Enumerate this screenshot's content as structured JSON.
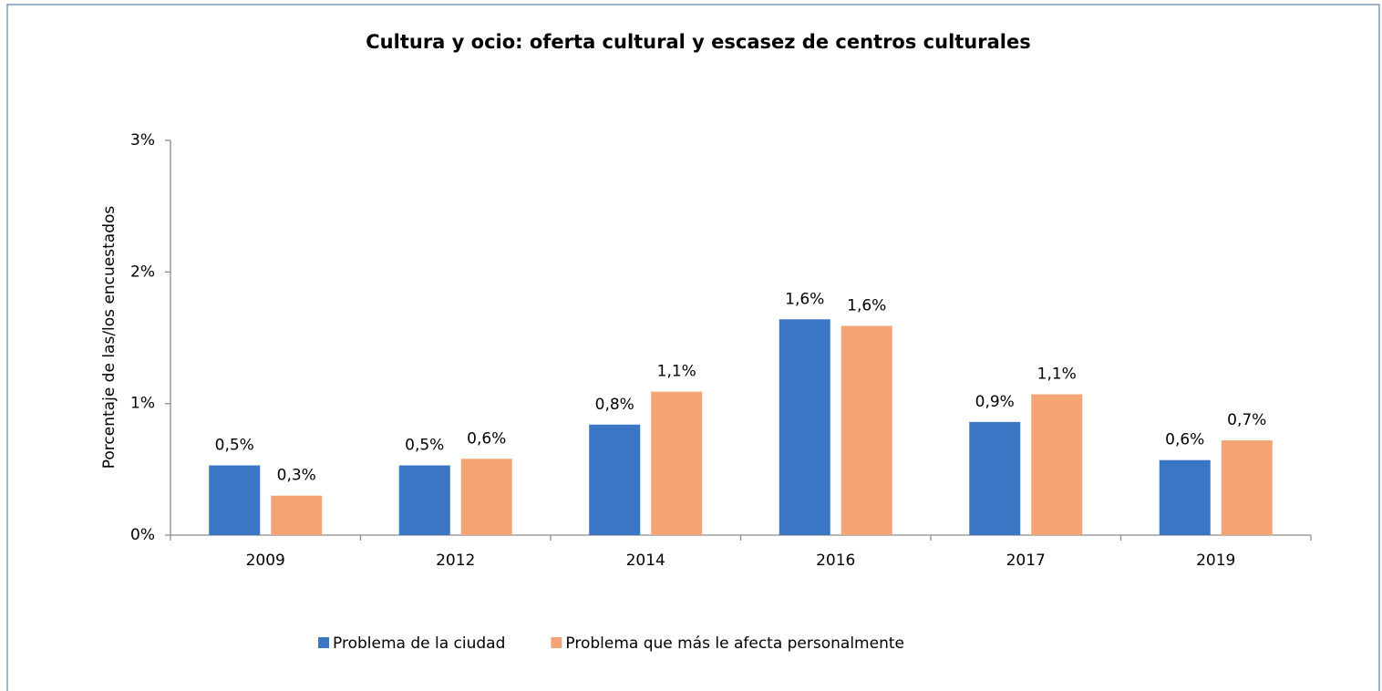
{
  "chart_data": {
    "type": "bar",
    "title": "Cultura y ocio: oferta cultural y escasez de centros culturales",
    "y_label": "Porcentaje de  las/los encuestados",
    "categories": [
      "2009",
      "2012",
      "2014",
      "2016",
      "2017",
      "2019"
    ],
    "series": [
      {
        "name": "Problema de la ciudad",
        "color": "#3a76c4",
        "values": [
          0.53,
          0.53,
          0.84,
          1.64,
          0.86,
          0.57
        ],
        "value_labels": [
          "0,5%",
          "0,5%",
          "0,8%",
          "1,6%",
          "0,9%",
          "0,6%"
        ]
      },
      {
        "name": "Problema que más le afecta personalmente",
        "color": "#f4a475",
        "values": [
          0.3,
          0.58,
          1.09,
          1.59,
          1.07,
          0.72
        ],
        "value_labels": [
          "0,3%",
          "0,6%",
          "1,1%",
          "1,6%",
          "1,1%",
          "0,7%"
        ]
      }
    ],
    "ylim": [
      0,
      3
    ],
    "yticks": [
      {
        "value": 0,
        "label": "0%"
      },
      {
        "value": 1,
        "label": "1%"
      },
      {
        "value": 2,
        "label": "2%"
      },
      {
        "value": 3,
        "label": "3%"
      }
    ],
    "legend": "bottom"
  }
}
